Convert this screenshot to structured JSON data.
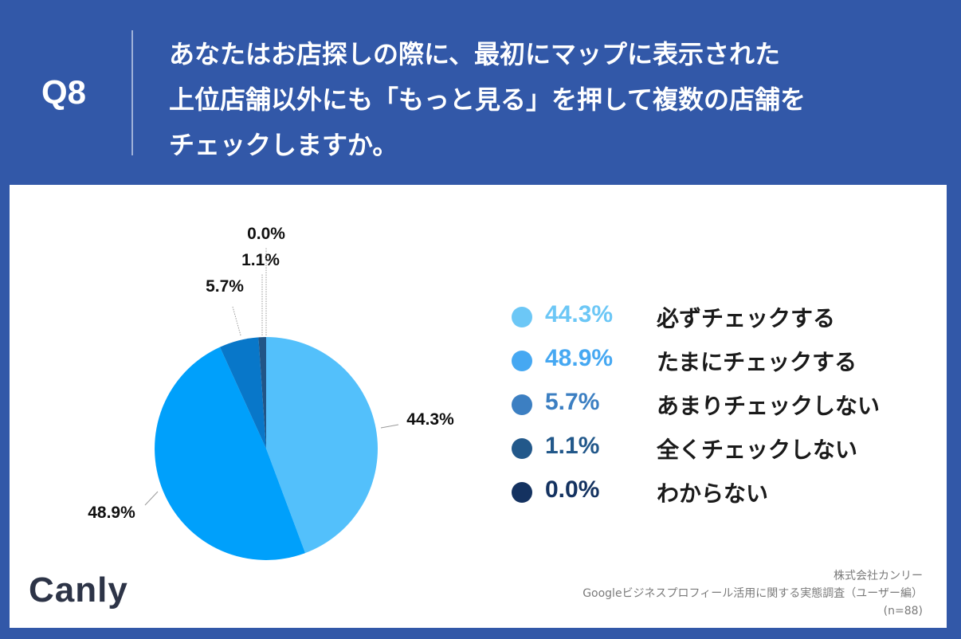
{
  "header": {
    "q_number": "Q8",
    "question_lines": [
      "あなたはお店探しの際に、最初にマップに表示された",
      "上位店舗以外にも「もっと見る」を押して複数の店舗を",
      "チェックしますか。"
    ]
  },
  "chart_data": {
    "type": "pie",
    "title": "あなたはお店探しの際に、最初にマップに表示された上位店舗以外にも「もっと見る」を押して複数の店舗をチェックしますか。",
    "categories": [
      "必ずチェックする",
      "たまにチェックする",
      "あまりチェックしない",
      "全くチェックしない",
      "わからない"
    ],
    "values": [
      44.3,
      48.9,
      5.7,
      1.1,
      0.0
    ],
    "labels": [
      "44.3%",
      "48.9%",
      "5.7%",
      "1.1%",
      "0.0%"
    ],
    "pie_colors": [
      "#53c0fb",
      "#00a0fb",
      "#0877c9",
      "#215586",
      "#152c57"
    ],
    "legend_pct_colors": [
      "#6cc7f6",
      "#46a8f2",
      "#3c7fc2",
      "#22588a",
      "#143260"
    ],
    "legend_position": "right"
  },
  "legend": {
    "items": [
      {
        "pct": "44.3%",
        "label": "必ずチェックする"
      },
      {
        "pct": "48.9%",
        "label": "たまにチェックする"
      },
      {
        "pct": "5.7%",
        "label": "あまりチェックしない"
      },
      {
        "pct": "1.1%",
        "label": "全くチェックしない"
      },
      {
        "pct": "0.0%",
        "label": "わからない"
      }
    ]
  },
  "footer": {
    "logo": "Canly",
    "source_lines": [
      "株式会社カンリー",
      "Googleビジネスプロフィール活用に関する実態調査（ユーザー編）",
      "(n=88)"
    ]
  }
}
